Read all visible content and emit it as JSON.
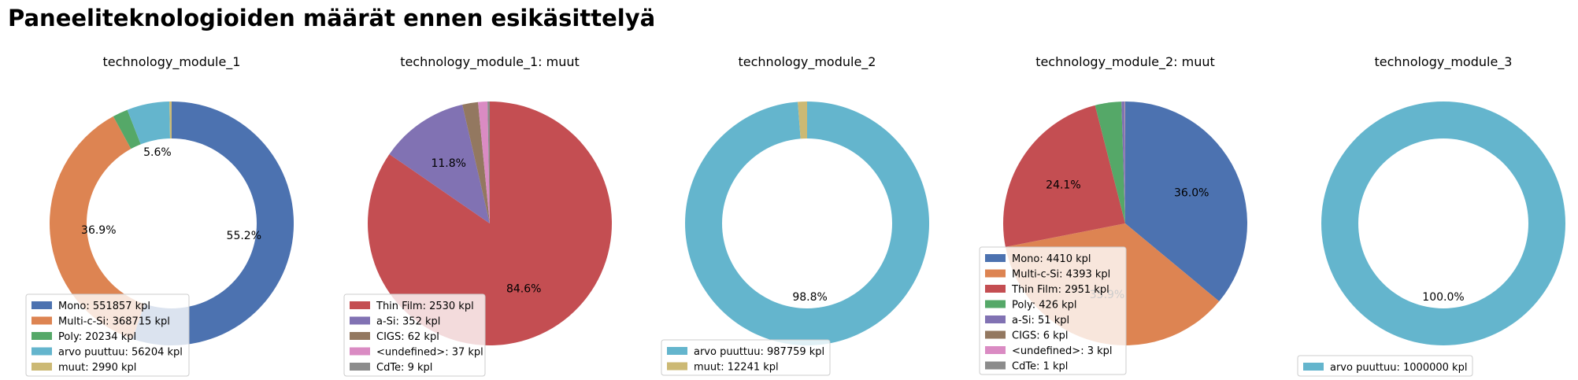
{
  "suptitle": "Paneeliteknologioiden määrät ennen esikäsittelyä",
  "colors": {
    "Mono": "#4c72b0",
    "Multi-c-Si": "#dd8452",
    "Poly": "#55a868",
    "arvo puuttuu": "#64b5cd",
    "muut": "#ccb974",
    "Thin Film": "#c44e52",
    "a-Si": "#8172b3",
    "CIGS": "#937860",
    "<undefined>": "#da8bc3",
    "CdTe": "#8c8c8c"
  },
  "chart_data": [
    {
      "type": "pie",
      "style": "donut",
      "title": "technology_module_1",
      "slices": [
        {
          "label": "Mono",
          "value": 551857,
          "legend": "Mono: 551857 kpl",
          "pct_label": "55.2%"
        },
        {
          "label": "Multi-c-Si",
          "value": 368715,
          "legend": "Multi-c-Si: 368715 kpl",
          "pct_label": "36.9%"
        },
        {
          "label": "Poly",
          "value": 20234,
          "legend": "Poly: 20234 kpl",
          "pct_label": ""
        },
        {
          "label": "arvo puuttuu",
          "value": 56204,
          "legend": "arvo puuttuu: 56204 kpl",
          "pct_label": "5.6%"
        },
        {
          "label": "muut",
          "value": 2990,
          "legend": "muut: 2990 kpl",
          "pct_label": ""
        }
      ]
    },
    {
      "type": "pie",
      "style": "full",
      "title": "technology_module_1: muut",
      "slices": [
        {
          "label": "Thin Film",
          "value": 2530,
          "legend": "Thin Film: 2530 kpl",
          "pct_label": "84.6%"
        },
        {
          "label": "a-Si",
          "value": 352,
          "legend": "a-Si: 352 kpl",
          "pct_label": "11.8%"
        },
        {
          "label": "CIGS",
          "value": 62,
          "legend": "CIGS: 62 kpl",
          "pct_label": ""
        },
        {
          "label": "<undefined>",
          "value": 37,
          "legend": "<undefined>: 37 kpl",
          "pct_label": ""
        },
        {
          "label": "CdTe",
          "value": 9,
          "legend": "CdTe: 9 kpl",
          "pct_label": ""
        }
      ]
    },
    {
      "type": "pie",
      "style": "donut",
      "title": "technology_module_2",
      "slices": [
        {
          "label": "arvo puuttuu",
          "value": 987759,
          "legend": "arvo puuttuu: 987759 kpl",
          "pct_label": "98.8%"
        },
        {
          "label": "muut",
          "value": 12241,
          "legend": "muut: 12241 kpl",
          "pct_label": ""
        }
      ]
    },
    {
      "type": "pie",
      "style": "full",
      "title": "technology_module_2: muut",
      "slices": [
        {
          "label": "Mono",
          "value": 4410,
          "legend": "Mono: 4410 kpl",
          "pct_label": "36.0%"
        },
        {
          "label": "Multi-c-Si",
          "value": 4393,
          "legend": "Multi-c-Si: 4393 kpl",
          "pct_label": "35.9%"
        },
        {
          "label": "Thin Film",
          "value": 2951,
          "legend": "Thin Film: 2951 kpl",
          "pct_label": "24.1%"
        },
        {
          "label": "Poly",
          "value": 426,
          "legend": "Poly: 426 kpl",
          "pct_label": ""
        },
        {
          "label": "a-Si",
          "value": 51,
          "legend": "a-Si: 51 kpl",
          "pct_label": ""
        },
        {
          "label": "CIGS",
          "value": 6,
          "legend": "CIGS: 6 kpl",
          "pct_label": ""
        },
        {
          "label": "<undefined>",
          "value": 3,
          "legend": "<undefined>: 3 kpl",
          "pct_label": ""
        },
        {
          "label": "CdTe",
          "value": 1,
          "legend": "CdTe: 1 kpl",
          "pct_label": ""
        }
      ]
    },
    {
      "type": "pie",
      "style": "donut",
      "title": "technology_module_3",
      "slices": [
        {
          "label": "arvo puuttuu",
          "value": 1000000,
          "legend": "arvo puuttuu: 1000000 kpl",
          "pct_label": "100.0%"
        }
      ]
    }
  ]
}
